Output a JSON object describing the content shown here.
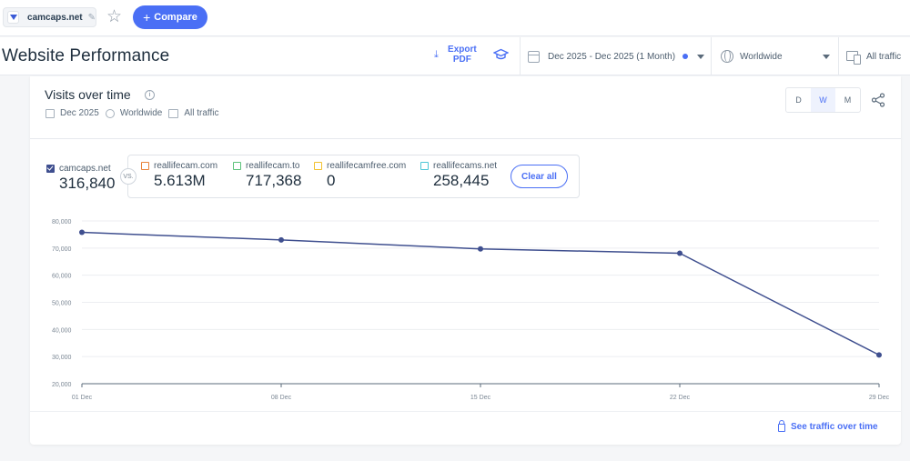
{
  "topbar": {
    "site": "camcaps.net",
    "compare_label": "Compare"
  },
  "header": {
    "title": "Website Performance",
    "export_label": "Export PDF",
    "date_range": "Dec 2025 - Dec 2025 (1 Month)",
    "geo": "Worldwide",
    "traffic": "All traffic"
  },
  "card": {
    "title": "Visits over time",
    "meta_date": "Dec 2025",
    "meta_geo": "Worldwide",
    "meta_traffic": "All traffic",
    "granularity": [
      "D",
      "W",
      "M"
    ],
    "granularity_active": "W",
    "main_site": {
      "name": "camcaps.net",
      "value": "316,840"
    },
    "vs_label": "VS.",
    "competitors": [
      {
        "name": "reallifecam.com",
        "value": "5.613M",
        "color": "#e8833a"
      },
      {
        "name": "reallifecam.to",
        "value": "717,368",
        "color": "#5cc27a"
      },
      {
        "name": "reallifecamfree.com",
        "value": "0",
        "color": "#f2c12e"
      },
      {
        "name": "reallifecams.net",
        "value": "258,445",
        "color": "#4cc6d6"
      }
    ],
    "clear_label": "Clear all",
    "footer_link": "See traffic over time"
  },
  "colors": {
    "accent": "#4a6ff5",
    "series": "#3f4f8f"
  },
  "chart_data": {
    "type": "line",
    "x": [
      "01 Dec",
      "08 Dec",
      "15 Dec",
      "22 Dec",
      "29 Dec"
    ],
    "series": [
      {
        "name": "camcaps.net",
        "values": [
          75800,
          73000,
          69700,
          68100,
          30600
        ]
      }
    ],
    "yticks": [
      "80,000",
      "70,000",
      "60,000",
      "50,000",
      "40,000",
      "30,000",
      "20,000"
    ],
    "ylim": [
      20000,
      80000
    ],
    "grid": true
  }
}
